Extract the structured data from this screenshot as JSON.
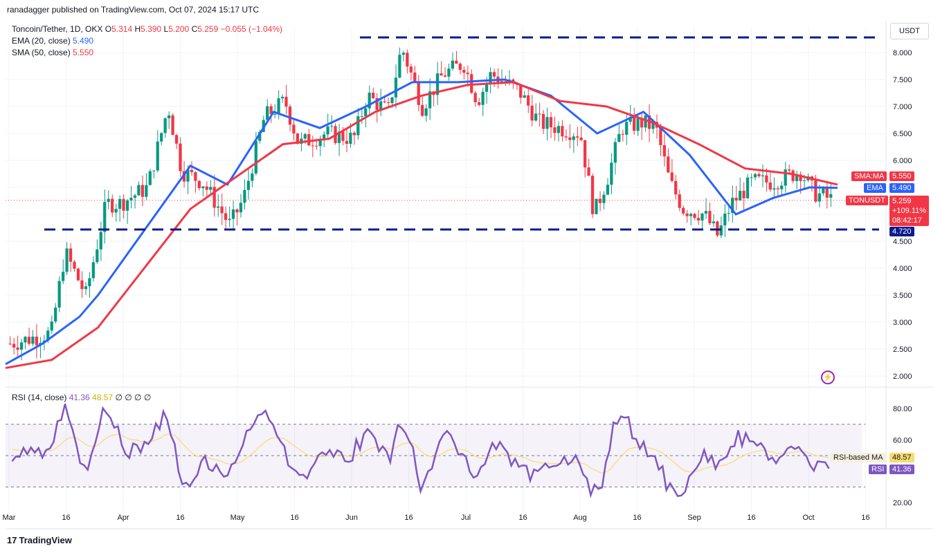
{
  "header": {
    "publisher": "ranadagger published on TradingView.com, Oct 07, 2024 15:17 UTC",
    "symbol_line": "Toncoin/Tether, 1D, OKX",
    "open_label": "O",
    "open": "5.314",
    "high_label": "H",
    "high": "5.390",
    "low_label": "L",
    "low": "5.200",
    "close_label": "C",
    "close": "5.259",
    "change": "−0.055 (−1.04%)",
    "ema_label": "EMA (20, close)",
    "ema_value": "5.490",
    "sma_label": "SMA (50, close)",
    "sma_value": "5.550",
    "rsi_label": "RSI (14, close)",
    "rsi_value": "41.36",
    "rsi_ma_value": "48.57",
    "rsi_extra": "∅ ∅ ∅ ∅"
  },
  "currency_button": "USDT",
  "tags": {
    "sma": {
      "label": "SMA:MA",
      "value": "5.550"
    },
    "ema": {
      "label": "EMA",
      "value": "5.490"
    },
    "price": {
      "label": "TONUSDT",
      "value": "5.259",
      "pct": "+109.11%",
      "countdown": "08:42:17"
    },
    "support": "4.720",
    "rsi_ma": {
      "label": "RSI-based MA",
      "value": "48.57"
    },
    "rsi": {
      "label": "RSI",
      "value": "41.36"
    }
  },
  "brand": "TradingView",
  "colors": {
    "up": "#089981",
    "down": "#f23645",
    "ema": "#2962ff",
    "sma": "#f23645",
    "rsi": "#7e57c2",
    "rsi_ma": "#f7dc6f",
    "levels": "#0d1b8c"
  },
  "chart_data": {
    "type": "candlestick",
    "price_axis_ticks": [
      "8.000",
      "7.500",
      "7.000",
      "6.500",
      "6.000",
      "5.500",
      "5.000",
      "4.500",
      "4.000",
      "3.500",
      "3.000",
      "2.500",
      "2.000"
    ],
    "rsi_axis_ticks": [
      "80.00",
      "60.00",
      "20.00"
    ],
    "x_ticks": [
      "Mar",
      "16",
      "Apr",
      "16",
      "May",
      "16",
      "Jun",
      "16",
      "Jul",
      "16",
      "Aug",
      "16",
      "Sep",
      "16",
      "Oct",
      "16"
    ],
    "resistance_level": 8.28,
    "support_level": 4.72,
    "series": [
      {
        "name": "EMA (20, close)",
        "points": [
          [
            0,
            2.22
          ],
          [
            8,
            2.6
          ],
          [
            16,
            3.1
          ],
          [
            20,
            3.5
          ],
          [
            30,
            4.7
          ],
          [
            40,
            5.9
          ],
          [
            48,
            5.55
          ],
          [
            58,
            6.9
          ],
          [
            68,
            6.6
          ],
          [
            78,
            7.0
          ],
          [
            88,
            7.45
          ],
          [
            98,
            7.45
          ],
          [
            108,
            7.5
          ],
          [
            118,
            7.2
          ],
          [
            128,
            6.5
          ],
          [
            138,
            6.9
          ],
          [
            148,
            6.1
          ],
          [
            158,
            5.0
          ],
          [
            166,
            5.3
          ],
          [
            174,
            5.5
          ],
          [
            180,
            5.49
          ]
        ]
      },
      {
        "name": "SMA (50, close)",
        "points": [
          [
            0,
            2.15
          ],
          [
            10,
            2.3
          ],
          [
            20,
            2.9
          ],
          [
            30,
            4.0
          ],
          [
            40,
            5.1
          ],
          [
            50,
            5.7
          ],
          [
            60,
            6.3
          ],
          [
            70,
            6.4
          ],
          [
            80,
            6.9
          ],
          [
            90,
            7.2
          ],
          [
            100,
            7.4
          ],
          [
            110,
            7.45
          ],
          [
            120,
            7.1
          ],
          [
            130,
            7.0
          ],
          [
            140,
            6.7
          ],
          [
            150,
            6.3
          ],
          [
            160,
            5.85
          ],
          [
            170,
            5.75
          ],
          [
            180,
            5.55
          ]
        ]
      }
    ],
    "rsi": {
      "last": 41.36,
      "ma_last": 48.57,
      "upper_band": 70,
      "lower_band": 30
    }
  }
}
